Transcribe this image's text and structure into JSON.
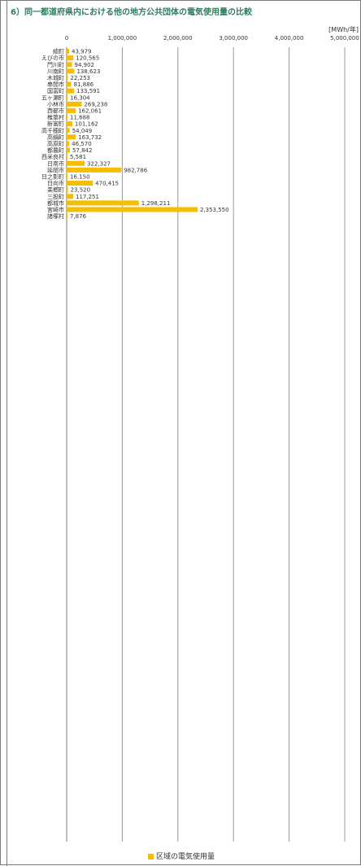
{
  "page": {
    "title": "6）同一都道府県内における他の地方公共団体の電気使用量の比較"
  },
  "colors": {
    "bar": "#f7bd00",
    "title": "#2e7d5b",
    "grid": "#999999"
  },
  "chart_data": {
    "type": "bar",
    "orientation": "horizontal",
    "unit": "[MWh/年]",
    "xlim": [
      0,
      5000000
    ],
    "x_ticks": [
      0,
      1000000,
      2000000,
      3000000,
      4000000,
      5000000
    ],
    "x_tick_labels": [
      "0",
      "1,000,000",
      "2,000,000",
      "3,000,000",
      "4,000,000",
      "5,000,000"
    ],
    "grid": true,
    "legend_position": "bottom",
    "series": [
      {
        "name": "区域の電気使用量",
        "color": "#f7bd00",
        "categories": [
          "綾町",
          "えびの市",
          "門川町",
          "川南町",
          "木城町",
          "串間市",
          "国富町",
          "五ヶ瀬町",
          "小林市",
          "西都市",
          "椎葉村",
          "新富町",
          "高千穂町",
          "高鍋町",
          "高原町",
          "都農町",
          "西米良村",
          "日南市",
          "延岡市",
          "日之影町",
          "日向市",
          "美郷町",
          "三股町",
          "都城市",
          "宮崎市",
          "諸塚村"
        ],
        "values": [
          43979,
          120565,
          94902,
          138623,
          22253,
          81886,
          133591,
          16304,
          269238,
          162061,
          11688,
          101162,
          54049,
          163732,
          46570,
          57842,
          5581,
          322327,
          982786,
          16150,
          470415,
          23520,
          117251,
          1298211,
          2353550,
          7876
        ],
        "value_labels": [
          "43,979",
          "120,565",
          "94,902",
          "138,623",
          "22,253",
          "81,886",
          "133,591",
          "16,304",
          "269,238",
          "162,061",
          "11,688",
          "101,162",
          "54,049",
          "163,732",
          "46,570",
          "57,842",
          "5,581",
          "322,327",
          "982,786",
          "16,150",
          "470,415",
          "23,520",
          "117,251",
          "1,298,211",
          "2,353,550",
          "7,876"
        ]
      }
    ]
  }
}
